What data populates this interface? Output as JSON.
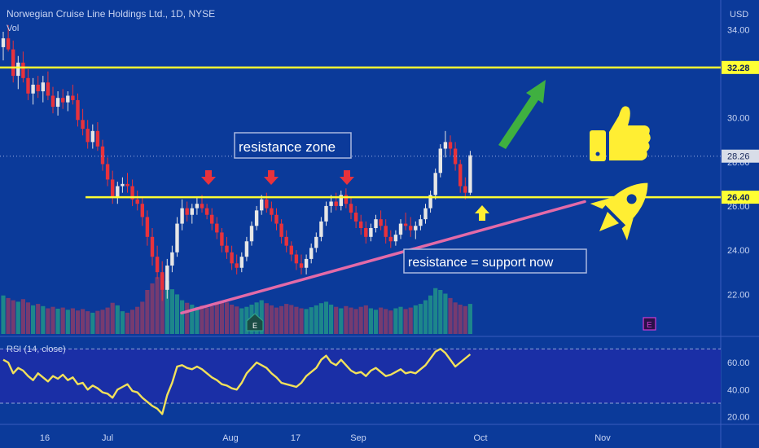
{
  "header": {
    "title": "Norwegian Cruise Line Holdings Ltd., 1D, NYSE",
    "vol_label": "Vol",
    "currency": "USD"
  },
  "colors": {
    "background": "#0b3a9a",
    "up": "#e6e6e6",
    "down": "#e8323c",
    "vol_up": "#1f8a8a",
    "vol_down": "#7c3b6e",
    "level_line": "#ffff33",
    "trend_line": "#e36aa8",
    "rsi_line": "#f2e15a",
    "arrow_down": "#e8323c",
    "arrow_up": "#ffee33",
    "arrow_green": "#3fb040"
  },
  "chart_data": [
    {
      "type": "candlestick",
      "price_axis": {
        "ticks": [
          "34.00",
          "30.00",
          "28.00",
          "26.00",
          "24.00",
          "22.00"
        ],
        "ylim": [
          20.2,
          34.6
        ]
      },
      "x_ticks": [
        "16",
        "Jul",
        "Aug",
        "17",
        "Sep",
        "Oct",
        "Nov"
      ],
      "levels": [
        {
          "label": "32.28",
          "value": 32.28
        },
        {
          "label": "26.40",
          "value": 26.4
        }
      ],
      "last_price": {
        "label": "28.26",
        "value": 28.26
      },
      "trendline": {
        "from": {
          "bar": 40,
          "price": 21.15
        },
        "to": {
          "bar": 140,
          "price": 26.2
        }
      },
      "annotations": [
        {
          "text": "resistance zone"
        },
        {
          "text": "resistance = support now"
        }
      ],
      "earnings_markers": [
        "E",
        "E"
      ],
      "ohlc": [
        [
          33.2,
          33.9,
          32.6,
          33.6
        ],
        [
          33.6,
          34.2,
          33.0,
          33.1
        ],
        [
          33.1,
          33.5,
          31.6,
          31.9
        ],
        [
          31.9,
          32.8,
          31.3,
          32.5
        ],
        [
          32.5,
          33.0,
          31.6,
          31.8
        ],
        [
          31.8,
          32.2,
          30.8,
          31.1
        ],
        [
          31.1,
          31.8,
          30.6,
          31.5
        ],
        [
          31.5,
          31.9,
          30.9,
          31.2
        ],
        [
          31.2,
          31.9,
          30.7,
          31.6
        ],
        [
          31.6,
          32.1,
          30.8,
          31.0
        ],
        [
          31.0,
          31.4,
          30.2,
          30.5
        ],
        [
          30.5,
          31.2,
          30.1,
          30.9
        ],
        [
          30.9,
          31.3,
          30.4,
          30.7
        ],
        [
          30.7,
          31.2,
          30.3,
          31.0
        ],
        [
          31.0,
          31.5,
          30.6,
          30.8
        ],
        [
          30.8,
          31.1,
          29.6,
          29.9
        ],
        [
          29.9,
          30.4,
          29.2,
          29.5
        ],
        [
          29.5,
          29.9,
          28.6,
          28.9
        ],
        [
          28.9,
          29.7,
          28.6,
          29.4
        ],
        [
          29.4,
          29.8,
          28.5,
          28.7
        ],
        [
          28.7,
          29.0,
          27.6,
          27.9
        ],
        [
          27.9,
          28.2,
          26.9,
          27.2
        ],
        [
          27.2,
          27.6,
          26.1,
          26.4
        ],
        [
          26.4,
          27.1,
          26.1,
          26.9
        ],
        [
          26.9,
          27.3,
          26.6,
          27.0
        ],
        [
          27.0,
          27.5,
          26.6,
          26.9
        ],
        [
          26.9,
          27.2,
          26.0,
          26.3
        ],
        [
          26.3,
          26.7,
          25.8,
          26.1
        ],
        [
          26.1,
          26.4,
          25.1,
          25.5
        ],
        [
          25.5,
          25.8,
          24.2,
          24.6
        ],
        [
          24.6,
          25.0,
          23.3,
          23.7
        ],
        [
          23.7,
          24.2,
          22.7,
          23.0
        ],
        [
          23.0,
          23.5,
          21.7,
          22.2
        ],
        [
          22.2,
          23.6,
          21.8,
          23.3
        ],
        [
          23.3,
          24.2,
          23.0,
          23.9
        ],
        [
          23.9,
          25.5,
          23.7,
          25.2
        ],
        [
          25.2,
          26.3,
          24.9,
          25.9
        ],
        [
          25.9,
          26.2,
          25.3,
          25.6
        ],
        [
          25.6,
          26.1,
          25.2,
          25.9
        ],
        [
          25.9,
          26.4,
          25.6,
          26.1
        ],
        [
          26.1,
          26.5,
          25.7,
          25.9
        ],
        [
          25.9,
          26.1,
          25.4,
          25.6
        ],
        [
          25.6,
          25.9,
          24.9,
          25.2
        ],
        [
          25.2,
          25.5,
          24.5,
          24.8
        ],
        [
          24.8,
          25.0,
          23.9,
          24.2
        ],
        [
          24.2,
          24.6,
          23.6,
          23.9
        ],
        [
          23.9,
          24.2,
          23.1,
          23.4
        ],
        [
          23.4,
          23.8,
          22.9,
          23.2
        ],
        [
          23.2,
          23.9,
          23.0,
          23.7
        ],
        [
          23.7,
          24.6,
          23.5,
          24.4
        ],
        [
          24.4,
          25.3,
          24.2,
          25.1
        ],
        [
          25.1,
          26.0,
          24.9,
          25.8
        ],
        [
          25.8,
          26.5,
          25.6,
          26.3
        ],
        [
          26.3,
          26.6,
          25.7,
          25.9
        ],
        [
          25.9,
          26.2,
          25.3,
          25.6
        ],
        [
          25.6,
          25.9,
          24.9,
          25.2
        ],
        [
          25.2,
          25.4,
          24.3,
          24.6
        ],
        [
          24.6,
          24.9,
          23.9,
          24.2
        ],
        [
          24.2,
          24.4,
          23.5,
          23.8
        ],
        [
          23.8,
          24.0,
          23.1,
          23.4
        ],
        [
          23.4,
          23.8,
          22.9,
          23.2
        ],
        [
          23.2,
          23.8,
          22.9,
          23.6
        ],
        [
          23.6,
          24.3,
          23.4,
          24.1
        ],
        [
          24.1,
          24.8,
          23.9,
          24.6
        ],
        [
          24.6,
          25.5,
          24.4,
          25.3
        ],
        [
          25.3,
          26.2,
          25.1,
          26.0
        ],
        [
          26.0,
          26.5,
          25.7,
          26.2
        ],
        [
          26.2,
          26.6,
          25.8,
          26.0
        ],
        [
          26.0,
          26.7,
          25.8,
          26.5
        ],
        [
          26.5,
          26.8,
          25.9,
          26.1
        ],
        [
          26.1,
          26.4,
          25.4,
          25.7
        ],
        [
          25.7,
          26.0,
          25.0,
          25.3
        ],
        [
          25.3,
          25.6,
          24.7,
          25.0
        ],
        [
          25.0,
          25.3,
          24.3,
          24.6
        ],
        [
          24.6,
          25.2,
          24.4,
          25.0
        ],
        [
          25.0,
          25.6,
          24.8,
          25.4
        ],
        [
          25.4,
          25.8,
          24.9,
          25.1
        ],
        [
          25.1,
          25.4,
          24.3,
          24.6
        ],
        [
          24.6,
          24.9,
          24.1,
          24.4
        ],
        [
          24.4,
          24.9,
          24.2,
          24.7
        ],
        [
          24.7,
          25.4,
          24.5,
          25.2
        ],
        [
          25.2,
          25.7,
          24.9,
          25.1
        ],
        [
          25.1,
          25.5,
          24.6,
          24.9
        ],
        [
          24.9,
          25.3,
          24.5,
          25.1
        ],
        [
          25.1,
          25.6,
          24.9,
          25.4
        ],
        [
          25.4,
          26.1,
          25.2,
          25.9
        ],
        [
          25.9,
          26.7,
          25.7,
          26.5
        ],
        [
          26.5,
          27.7,
          26.3,
          27.5
        ],
        [
          27.5,
          28.8,
          27.3,
          28.6
        ],
        [
          28.6,
          29.4,
          28.2,
          28.9
        ],
        [
          28.9,
          29.2,
          28.3,
          28.6
        ],
        [
          28.6,
          28.9,
          27.6,
          27.9
        ],
        [
          27.9,
          28.1,
          26.6,
          26.9
        ],
        [
          26.9,
          27.3,
          26.3,
          26.6
        ],
        [
          26.6,
          28.5,
          26.5,
          28.3
        ]
      ],
      "volume": [
        1.05,
        0.98,
        0.92,
        0.88,
        0.95,
        0.86,
        0.78,
        0.82,
        0.76,
        0.7,
        0.74,
        0.69,
        0.72,
        0.66,
        0.7,
        0.64,
        0.68,
        0.62,
        0.58,
        0.63,
        0.66,
        0.72,
        0.85,
        0.78,
        0.62,
        0.58,
        0.66,
        0.74,
        0.88,
        1.2,
        1.38,
        1.55,
        1.62,
        1.45,
        1.22,
        1.08,
        0.92,
        0.85,
        0.8,
        0.74,
        0.78,
        0.72,
        0.76,
        0.82,
        0.9,
        0.86,
        0.8,
        0.75,
        0.7,
        0.74,
        0.8,
        0.86,
        0.92,
        0.84,
        0.78,
        0.72,
        0.76,
        0.82,
        0.79,
        0.74,
        0.7,
        0.68,
        0.73,
        0.78,
        0.84,
        0.88,
        0.8,
        0.74,
        0.7,
        0.76,
        0.72,
        0.68,
        0.74,
        0.78,
        0.7,
        0.66,
        0.72,
        0.68,
        0.64,
        0.7,
        0.74,
        0.68,
        0.72,
        0.78,
        0.82,
        0.92,
        1.05,
        1.25,
        1.2,
        1.1,
        0.98,
        0.86,
        0.8,
        0.76,
        0.82
      ]
    },
    {
      "type": "line",
      "label": "RSI (14, close)",
      "axis": {
        "ticks": [
          "60.00",
          "40.00",
          "20.00"
        ],
        "ylim": [
          15,
          78
        ]
      },
      "bands": [
        70,
        30
      ],
      "values": [
        62,
        60,
        52,
        56,
        54,
        50,
        47,
        52,
        49,
        46,
        50,
        48,
        51,
        47,
        49,
        44,
        45,
        40,
        43,
        41,
        38,
        37,
        34,
        40,
        42,
        44,
        39,
        38,
        34,
        31,
        28,
        26,
        22,
        36,
        45,
        57,
        58,
        56,
        55,
        57,
        55,
        52,
        49,
        47,
        44,
        43,
        41,
        40,
        45,
        52,
        56,
        60,
        58,
        56,
        52,
        49,
        45,
        44,
        43,
        42,
        45,
        50,
        53,
        56,
        62,
        65,
        60,
        58,
        62,
        58,
        54,
        52,
        53,
        50,
        54,
        56,
        53,
        50,
        51,
        53,
        55,
        52,
        53,
        52,
        55,
        58,
        63,
        68,
        70,
        67,
        62,
        57,
        60,
        63,
        66
      ]
    }
  ]
}
